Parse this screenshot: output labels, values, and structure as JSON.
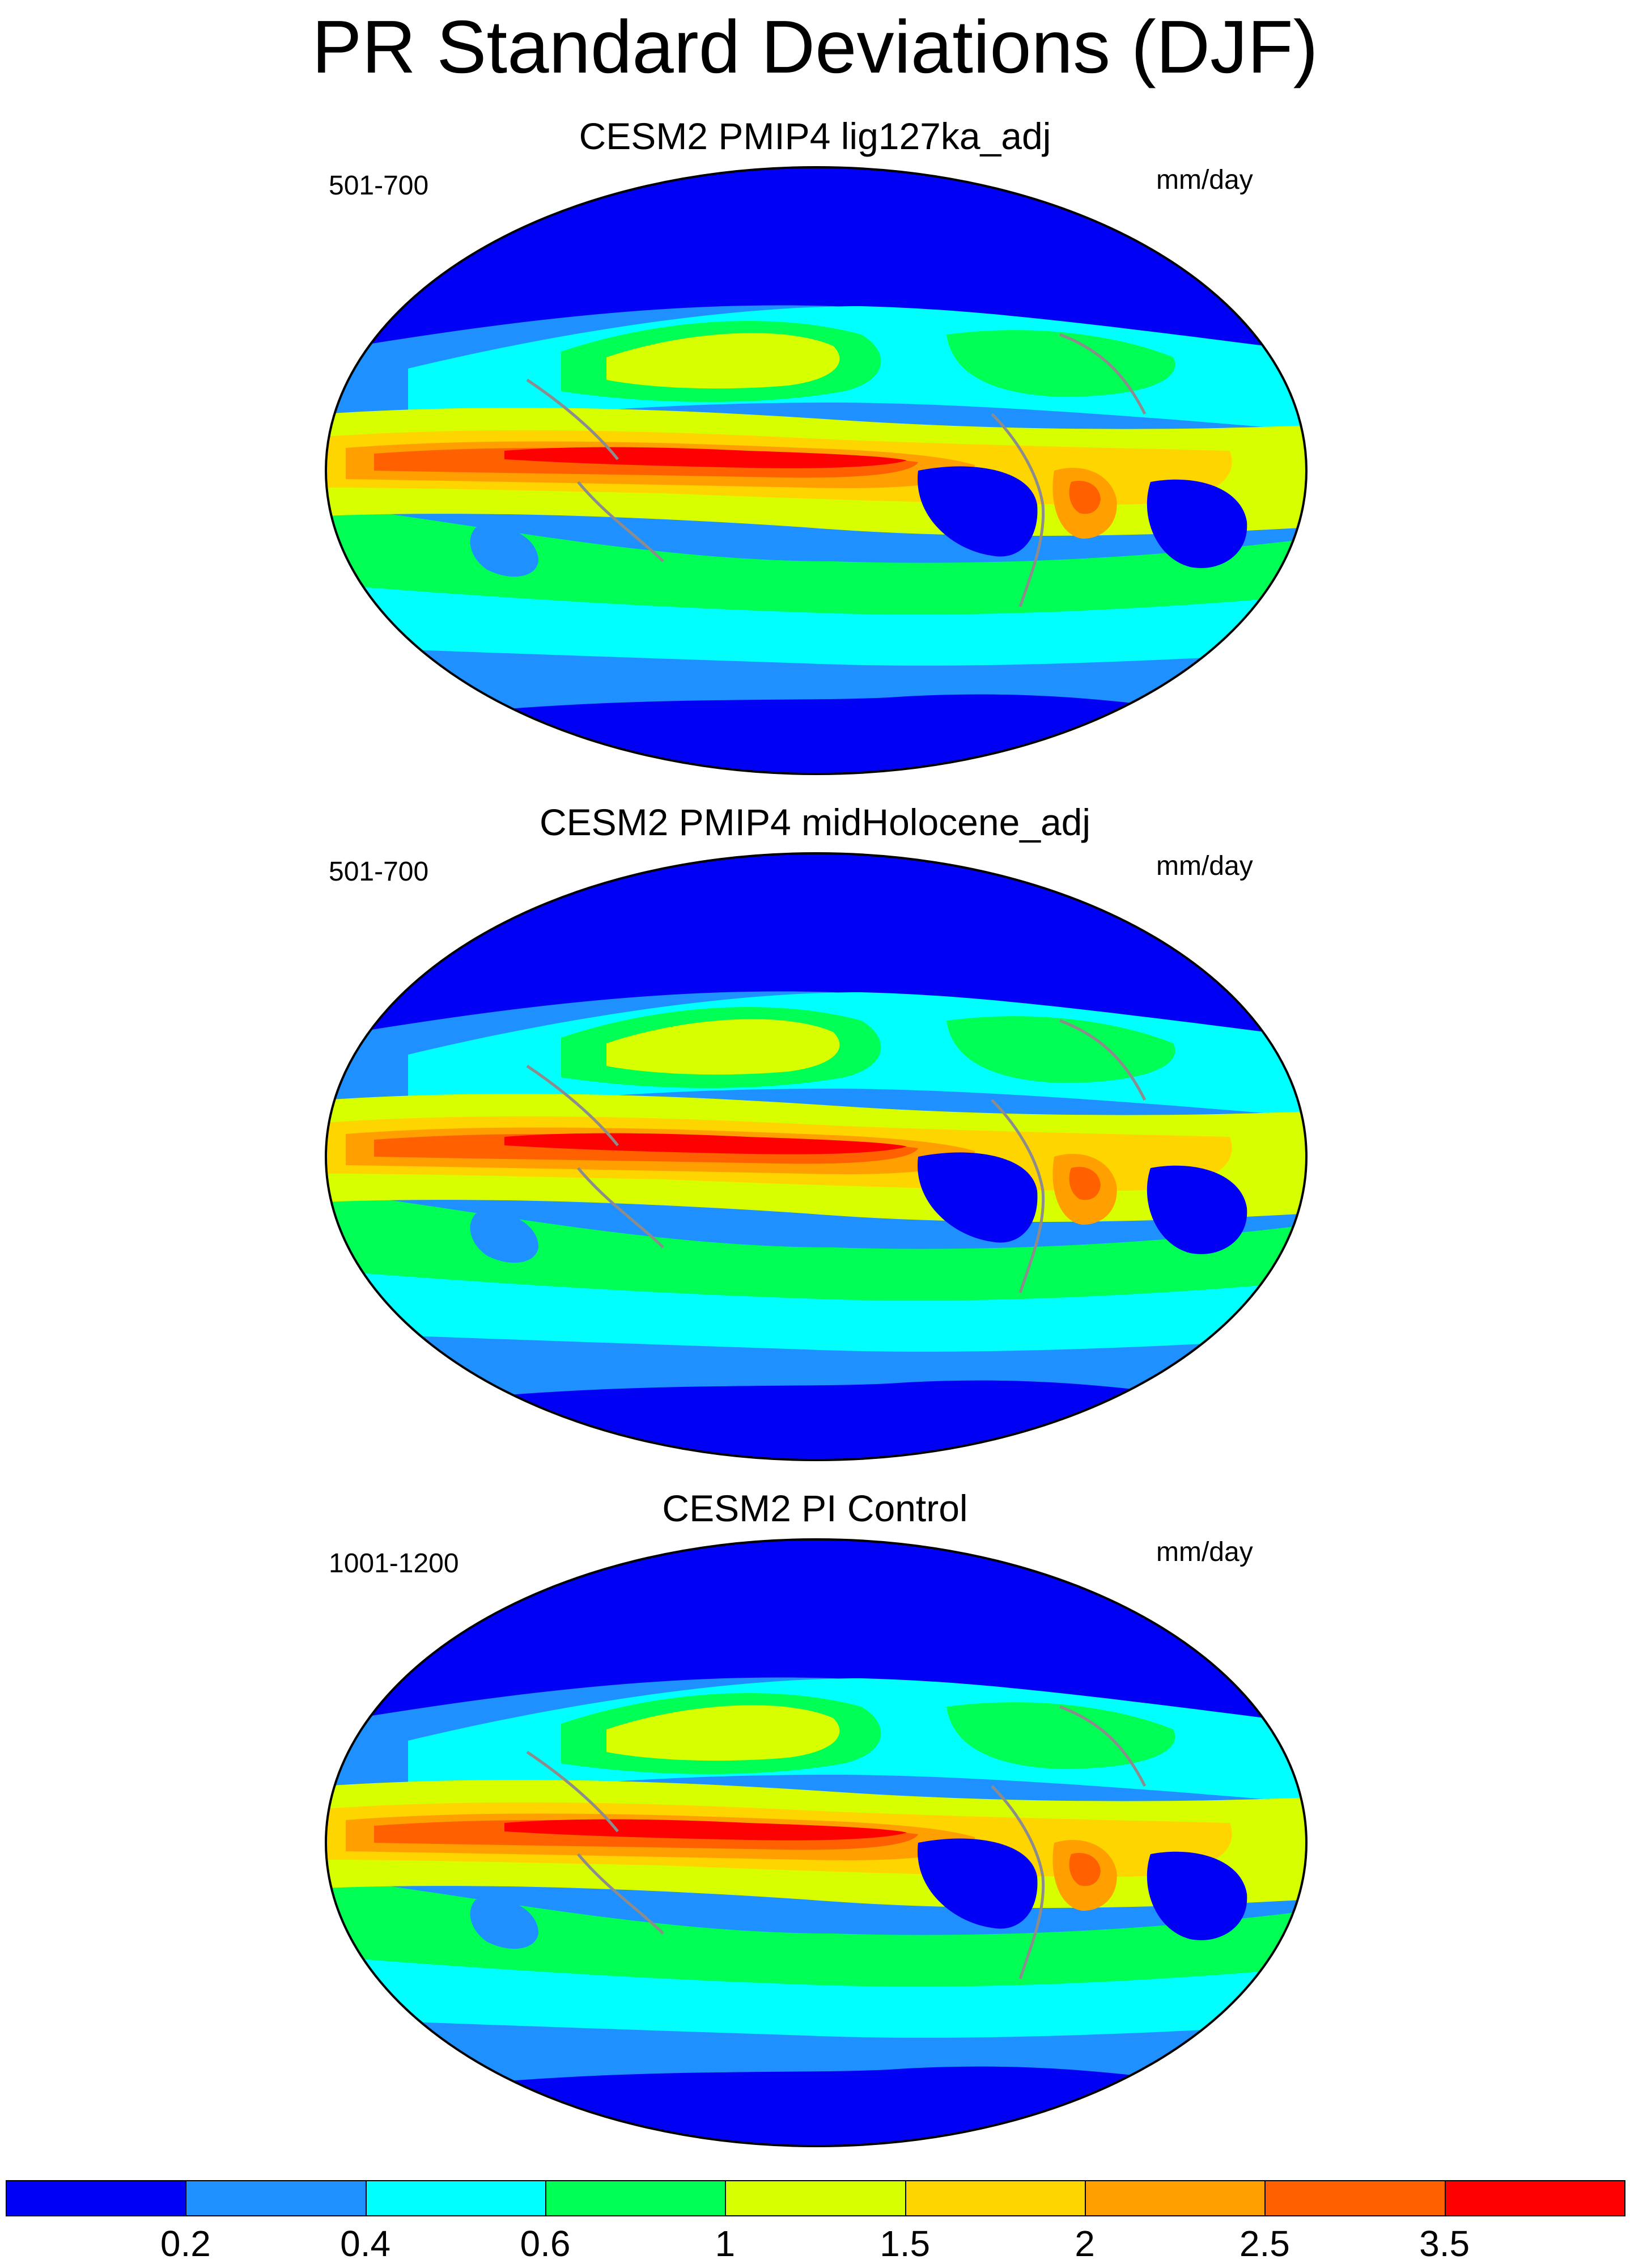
{
  "title": "PR Standard Deviations (DJF)",
  "panels": [
    {
      "title": "CESM2 PMIP4 lig127ka_adj",
      "years": "501-700",
      "units": "mm/day"
    },
    {
      "title": "CESM2 PMIP4 midHolocene_adj",
      "years": "501-700",
      "units": "mm/day"
    },
    {
      "title": "CESM2 PI Control",
      "years": "1001-1200",
      "units": "mm/day"
    }
  ],
  "colorbar": {
    "labels": [
      "0.2",
      "0.4",
      "0.6",
      "1",
      "1.5",
      "2",
      "2.5",
      "3.5"
    ],
    "colors": [
      "#0000f5",
      "#1e90ff",
      "#00ffff",
      "#00ff55",
      "#d8ff00",
      "#ffd500",
      "#ffa000",
      "#ff6000",
      "#ff0000"
    ]
  },
  "colors": {
    "coastline": "#8c8c8c",
    "outline": "#000000"
  }
}
